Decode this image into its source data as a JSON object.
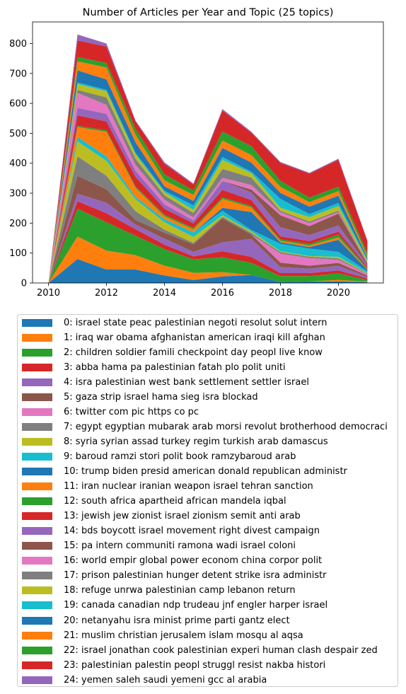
{
  "chart_data": {
    "type": "area",
    "stacked": true,
    "title": "Number of Articles per Year and Topic (25 topics)",
    "xlabel": "",
    "ylabel": "",
    "x": [
      2010,
      2011,
      2012,
      2013,
      2014,
      2015,
      2016,
      2017,
      2018,
      2019,
      2020,
      2021
    ],
    "xticks": [
      "2010",
      "2012",
      "2014",
      "2016",
      "2018",
      "2020"
    ],
    "yticks": [
      "0",
      "100",
      "200",
      "300",
      "400",
      "500",
      "600",
      "700",
      "800"
    ],
    "xlim": [
      2009.45,
      2021.55
    ],
    "ylim": [
      0,
      872
    ],
    "grid": false,
    "legend_position": "below",
    "series": [
      {
        "name": "0: israel state peac palestinian negoti resolut solut intern",
        "color": "#1f77b4",
        "values": [
          0,
          80,
          45,
          45,
          25,
          10,
          22,
          27,
          3,
          5,
          5,
          3
        ]
      },
      {
        "name": "1: iraq war obama afghanistan american iraqi kill afghan",
        "color": "#ff7f0e",
        "values": [
          0,
          75,
          63,
          48,
          33,
          24,
          14,
          0,
          0,
          0,
          5,
          2
        ]
      },
      {
        "name": "2: children soldier famili checkpoint day peopl live know",
        "color": "#2ca02c",
        "values": [
          0,
          93,
          95,
          65,
          55,
          45,
          50,
          40,
          20,
          18,
          22,
          5
        ]
      },
      {
        "name": "3: abba hama pa palestinian fatah plo polit uniti",
        "color": "#d62728",
        "values": [
          0,
          25,
          30,
          22,
          15,
          10,
          20,
          20,
          10,
          10,
          10,
          5
        ]
      },
      {
        "name": "4: isra palestinian west bank settlement settler israel",
        "color": "#9467bd",
        "values": [
          0,
          25,
          35,
          15,
          20,
          15,
          30,
          60,
          20,
          15,
          15,
          5
        ]
      },
      {
        "name": "5: gaza strip israel hama sieg isra blockad",
        "color": "#8c564b",
        "values": [
          0,
          60,
          45,
          15,
          20,
          25,
          80,
          15,
          15,
          10,
          10,
          5
        ]
      },
      {
        "name": "6: twitter com pic https co pc",
        "color": "#e377c2",
        "values": [
          0,
          0,
          0,
          0,
          0,
          0,
          0,
          0,
          30,
          25,
          10,
          5
        ]
      },
      {
        "name": "7: egypt egyptian mubarak arab morsi revolut brotherhood democraci",
        "color": "#7f7f7f",
        "values": [
          0,
          65,
          45,
          30,
          10,
          5,
          5,
          5,
          5,
          5,
          5,
          2
        ]
      },
      {
        "name": "8: syria syrian assad turkey regim turkish arab damascus",
        "color": "#bcbd22",
        "values": [
          0,
          50,
          50,
          40,
          25,
          20,
          5,
          5,
          3,
          2,
          5,
          2
        ]
      },
      {
        "name": "9: baroud ramzi stori polit book ramzybaroud arab",
        "color": "#17becf",
        "values": [
          0,
          15,
          15,
          8,
          10,
          15,
          15,
          5,
          25,
          25,
          17,
          5
        ]
      },
      {
        "name": "10: trump biden presid american donald republican administr",
        "color": "#1f77b4",
        "values": [
          0,
          0,
          0,
          0,
          0,
          0,
          10,
          60,
          5,
          5,
          40,
          5
        ]
      },
      {
        "name": "11: iran nuclear iranian weapon israel tehran sanction",
        "color": "#ff7f0e",
        "values": [
          0,
          33,
          82,
          30,
          10,
          10,
          30,
          15,
          5,
          5,
          8,
          2
        ]
      },
      {
        "name": "12: south africa apartheid african mandela iqbal",
        "color": "#2ca02c",
        "values": [
          0,
          4,
          5,
          5,
          5,
          5,
          5,
          5,
          5,
          5,
          10,
          3
        ]
      },
      {
        "name": "13: jewish jew zionist israel zionism semit anti arab",
        "color": "#d62728",
        "values": [
          0,
          35,
          30,
          32,
          20,
          15,
          25,
          20,
          10,
          10,
          10,
          5
        ]
      },
      {
        "name": "14: bds boycott israel movement right divest campaign",
        "color": "#9467bd",
        "values": [
          0,
          25,
          25,
          20,
          15,
          10,
          30,
          25,
          30,
          20,
          20,
          5
        ]
      },
      {
        "name": "15: pa intern communiti ramona wadi israel coloni",
        "color": "#8c564b",
        "values": [
          0,
          0,
          0,
          0,
          0,
          0,
          0,
          10,
          40,
          30,
          40,
          5
        ]
      },
      {
        "name": "16: world empir global power econom china corpor polit",
        "color": "#e377c2",
        "values": [
          0,
          50,
          30,
          20,
          15,
          10,
          10,
          15,
          10,
          10,
          5,
          3
        ]
      },
      {
        "name": "17: prison palestinian hunger detent strike isra administr",
        "color": "#7f7f7f",
        "values": [
          0,
          10,
          25,
          20,
          15,
          15,
          30,
          25,
          5,
          5,
          5,
          2
        ]
      },
      {
        "name": "18: refuge unrwa palestinian camp lebanon return",
        "color": "#bcbd22",
        "values": [
          0,
          20,
          20,
          15,
          10,
          10,
          30,
          15,
          10,
          15,
          15,
          5
        ]
      },
      {
        "name": "19: canada canadian ndp trudeau jnf engler harper israel",
        "color": "#17becf",
        "values": [
          0,
          5,
          5,
          5,
          5,
          15,
          10,
          5,
          30,
          10,
          10,
          5
        ]
      },
      {
        "name": "20: netanyahu isra minist prime parti gantz elect",
        "color": "#1f77b4",
        "values": [
          0,
          40,
          35,
          35,
          15,
          15,
          30,
          30,
          20,
          25,
          25,
          5
        ]
      },
      {
        "name": "21: muslim christian jerusalem islam mosqu al aqsa",
        "color": "#ff7f0e",
        "values": [
          0,
          30,
          40,
          25,
          20,
          20,
          25,
          25,
          20,
          15,
          15,
          5
        ]
      },
      {
        "name": "22: israel jonathan cook palestinian experi human clash despair zed",
        "color": "#2ca02c",
        "values": [
          0,
          15,
          15,
          20,
          20,
          15,
          30,
          30,
          20,
          15,
          15,
          10
        ]
      },
      {
        "name": "23: palestinian palestin peopl struggl resist nakba histori",
        "color": "#d62728",
        "values": [
          0,
          55,
          55,
          25,
          35,
          20,
          70,
          45,
          60,
          80,
          90,
          40
        ]
      },
      {
        "name": "24: yemen saleh saudi yemeni gcc al arabia",
        "color": "#9467bd",
        "values": [
          0,
          20,
          10,
          3,
          5,
          3,
          5,
          3,
          3,
          3,
          3,
          3
        ]
      }
    ]
  }
}
